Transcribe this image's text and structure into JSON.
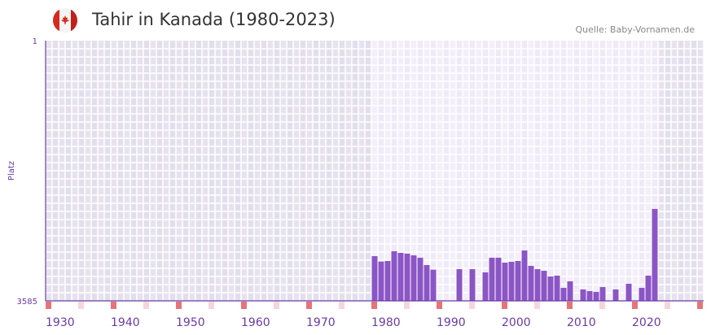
{
  "header": {
    "title": "Tahir in Kanada (1980-2023)",
    "source": "Quelle: Baby-Vornamen.de",
    "flag_icon": "canada-flag-icon"
  },
  "chart_data": {
    "type": "bar",
    "title": "Tahir in Kanada (1980-2023)",
    "xlabel": "",
    "ylabel": "Platz",
    "y_inverted": true,
    "ylim": [
      1,
      3585
    ],
    "ytick_labels": [
      "1",
      "3585"
    ],
    "xlim": [
      1930,
      2030
    ],
    "xtick_labels": [
      "1930",
      "1940",
      "1950",
      "1960",
      "1970",
      "1980",
      "1990",
      "2000",
      "2010",
      "2020"
    ],
    "highlight_range": [
      1980,
      2023
    ],
    "x": [
      1980,
      1981,
      1982,
      1983,
      1984,
      1985,
      1986,
      1987,
      1988,
      1989,
      1990,
      1991,
      1992,
      1993,
      1994,
      1995,
      1996,
      1997,
      1998,
      1999,
      2000,
      2001,
      2002,
      2003,
      2004,
      2005,
      2006,
      2007,
      2008,
      2009,
      2010,
      2011,
      2012,
      2013,
      2014,
      2015,
      2016,
      2017,
      2018,
      2019,
      2020,
      2021,
      2022,
      2023
    ],
    "values": [
      2969,
      3044,
      3036,
      2902,
      2924,
      2935,
      2958,
      2991,
      3092,
      3156,
      null,
      null,
      null,
      3148,
      null,
      3148,
      null,
      3193,
      2991,
      2991,
      3059,
      3047,
      3036,
      2891,
      3103,
      3148,
      3171,
      3249,
      3238,
      3406,
      3316,
      null,
      3428,
      3451,
      3462,
      3395,
      null,
      3428,
      null,
      3350,
      null,
      3406,
      3238,
      2319
    ],
    "colors": {
      "bar": "#8b55c6",
      "axis": "#6a3aa6",
      "decade_marker": "#e57378",
      "half_decade_marker": "#f5d6de",
      "bg_in": "#efeaf8",
      "bg_out": "#e2dfec",
      "label": "#6a3aa6"
    }
  }
}
